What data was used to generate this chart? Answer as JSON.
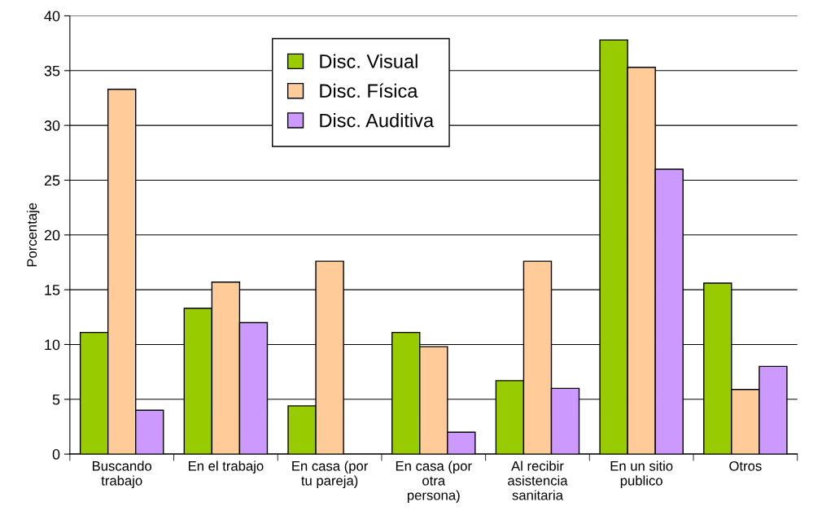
{
  "chart_data": {
    "type": "bar",
    "ylabel": "Porcentaje",
    "categories": [
      "Buscando\ntrabajo",
      "En el trabajo",
      "En casa (por\ntu pareja)",
      "En casa (por\notra\npersona)",
      "Al recibir\nasistencia\nsanitaria",
      "En un sitio\npublico",
      "Otros"
    ],
    "series": [
      {
        "name": "Disc. Visual",
        "color": "#99cc00",
        "values": [
          11.1,
          13.3,
          4.4,
          11.1,
          6.7,
          37.8,
          15.6
        ]
      },
      {
        "name": "Disc. Física",
        "color": "#ffcc99",
        "values": [
          33.3,
          15.7,
          17.6,
          9.8,
          17.6,
          35.3,
          5.9
        ]
      },
      {
        "name": "Disc. Auditiva",
        "color": "#cc99ff",
        "values": [
          4,
          12,
          null,
          2,
          6,
          26,
          8
        ]
      }
    ],
    "ylim": [
      0,
      40
    ],
    "yticks": [
      0,
      5,
      10,
      15,
      20,
      25,
      30,
      35,
      40
    ],
    "grid": "y",
    "legend": "top"
  }
}
